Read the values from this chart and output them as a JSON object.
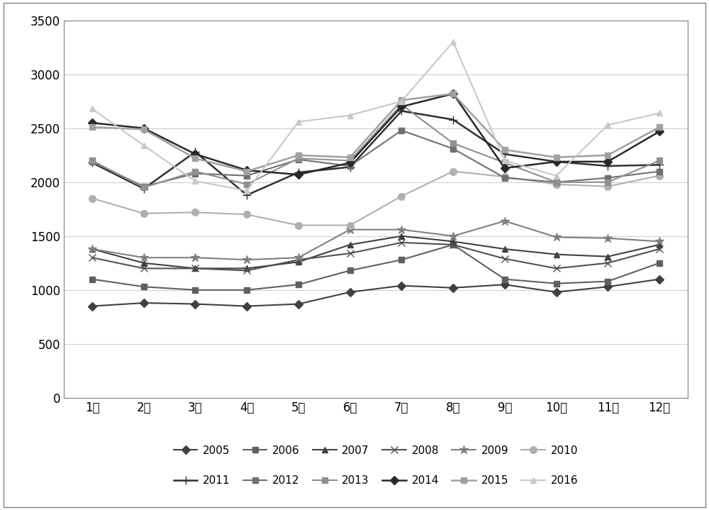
{
  "months": [
    "1月",
    "2月",
    "3月",
    "4月",
    "5月",
    "6月",
    "7月",
    "8月",
    "9月",
    "10月",
    "11月",
    "12月"
  ],
  "series": {
    "2005": [
      850,
      880,
      870,
      850,
      870,
      980,
      1040,
      1020,
      1050,
      980,
      1030,
      1100
    ],
    "2006": [
      1100,
      1030,
      1000,
      1000,
      1050,
      1180,
      1280,
      1420,
      1100,
      1060,
      1080,
      1250
    ],
    "2007": [
      1380,
      1250,
      1200,
      1200,
      1260,
      1420,
      1500,
      1450,
      1380,
      1330,
      1310,
      1420
    ],
    "2008": [
      1300,
      1200,
      1200,
      1180,
      1280,
      1340,
      1440,
      1420,
      1290,
      1200,
      1250,
      1380
    ],
    "2009": [
      1380,
      1300,
      1300,
      1280,
      1300,
      1560,
      1560,
      1500,
      1640,
      1490,
      1480,
      1450
    ],
    "2010": [
      1850,
      1710,
      1720,
      1700,
      1600,
      1600,
      1870,
      2100,
      2050,
      1980,
      1960,
      2060
    ],
    "2011": [
      2180,
      1940,
      2280,
      1880,
      2090,
      2140,
      2660,
      2580,
      2260,
      2190,
      2150,
      2160
    ],
    "2012": [
      2190,
      1960,
      2080,
      2060,
      2210,
      2150,
      2480,
      2310,
      2040,
      2000,
      2040,
      2100
    ],
    "2013": [
      2200,
      1950,
      2100,
      1980,
      2220,
      2200,
      2720,
      2360,
      2180,
      2000,
      2000,
      2200
    ],
    "2014": [
      2550,
      2500,
      2260,
      2110,
      2070,
      2180,
      2700,
      2820,
      2130,
      2190,
      2190,
      2470
    ],
    "2015": [
      2510,
      2490,
      2220,
      2100,
      2250,
      2230,
      2760,
      2820,
      2300,
      2230,
      2250,
      2510
    ],
    "2016": [
      2680,
      2340,
      2010,
      1920,
      2560,
      2620,
      2750,
      3300,
      2200,
      2060,
      2530,
      2640
    ]
  },
  "ylim": [
    0,
    3500
  ],
  "yticks": [
    0,
    500,
    1000,
    1500,
    2000,
    2500,
    3000,
    3500
  ],
  "colors": {
    "2005": "#404040",
    "2006": "#606060",
    "2007": "#404040",
    "2008": "#505050",
    "2009": "#808080",
    "2010": "#b0b0b0",
    "2011": "#303030",
    "2012": "#707070",
    "2013": "#909090",
    "2014": "#282828",
    "2015": "#a0a0a0",
    "2016": "#c8c8c8"
  },
  "markers": {
    "2005": "D",
    "2006": "s",
    "2007": "^",
    "2008": "x",
    "2009": "*",
    "2010": "o",
    "2011": "+",
    "2012": "s",
    "2013": "s",
    "2014": "D",
    "2015": "s",
    "2016": "^"
  },
  "markersizes": {
    "2005": 6,
    "2006": 6,
    "2007": 6,
    "2008": 7,
    "2009": 9,
    "2010": 7,
    "2011": 8,
    "2012": 6,
    "2013": 6,
    "2014": 6,
    "2015": 6,
    "2016": 6
  },
  "linewidths": {
    "2005": 1.5,
    "2006": 1.5,
    "2007": 1.5,
    "2008": 1.5,
    "2009": 1.5,
    "2010": 1.5,
    "2011": 1.8,
    "2012": 1.5,
    "2013": 1.5,
    "2014": 1.8,
    "2015": 1.8,
    "2016": 1.5
  },
  "background_color": "#ffffff",
  "grid_color": "#d0d0d0",
  "border_color": "#808080",
  "years_order": [
    "2005",
    "2006",
    "2007",
    "2008",
    "2009",
    "2010",
    "2011",
    "2012",
    "2013",
    "2014",
    "2015",
    "2016"
  ],
  "legend_row1": [
    "2005",
    "2006",
    "2007",
    "2008",
    "2009",
    "2010"
  ],
  "legend_row2": [
    "2011",
    "2012",
    "2013",
    "2014",
    "2015",
    "2016"
  ]
}
